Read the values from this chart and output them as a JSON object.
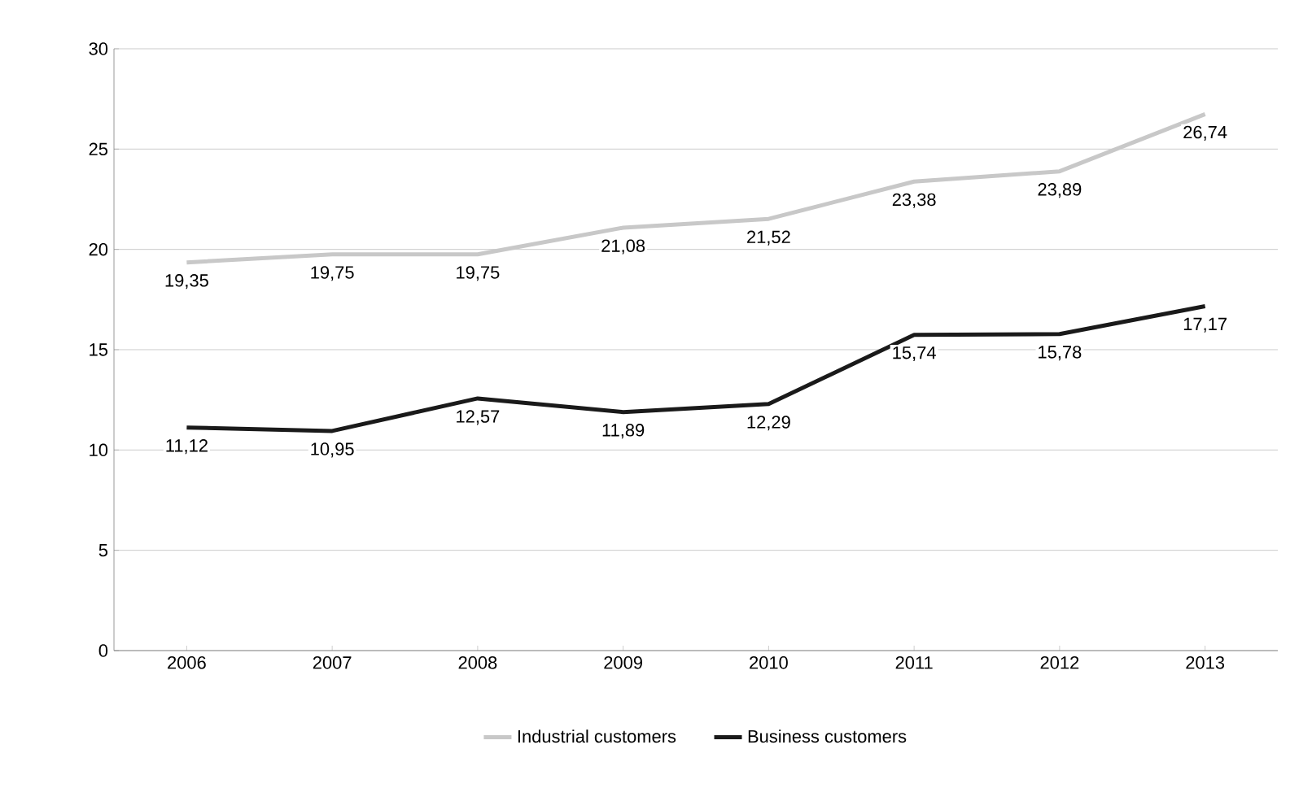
{
  "chart_data": {
    "type": "line",
    "categories": [
      "2006",
      "2007",
      "2008",
      "2009",
      "2010",
      "2011",
      "2012",
      "2013"
    ],
    "series": [
      {
        "name": "Industrial customers",
        "color": "#c8c8c8",
        "values": [
          19.35,
          19.75,
          19.75,
          21.08,
          21.52,
          23.38,
          23.89,
          26.74
        ],
        "value_labels": [
          "19,35",
          "19,75",
          "19,75",
          "21,08",
          "21,52",
          "23,38",
          "23,89",
          "26,74"
        ]
      },
      {
        "name": "Business customers",
        "color": "#1a1a1a",
        "values": [
          11.12,
          10.95,
          12.57,
          11.89,
          12.29,
          15.74,
          15.78,
          17.17
        ],
        "value_labels": [
          "11,12",
          "10,95",
          "12,57",
          "11,89",
          "12,29",
          "15,74",
          "15,78",
          "17,17"
        ]
      }
    ],
    "ylim": [
      0,
      30
    ],
    "yticks": [
      0,
      5,
      10,
      15,
      20,
      25,
      30
    ],
    "grid": "y",
    "legend": "bottom",
    "marker": "none",
    "line_style": "solid"
  }
}
